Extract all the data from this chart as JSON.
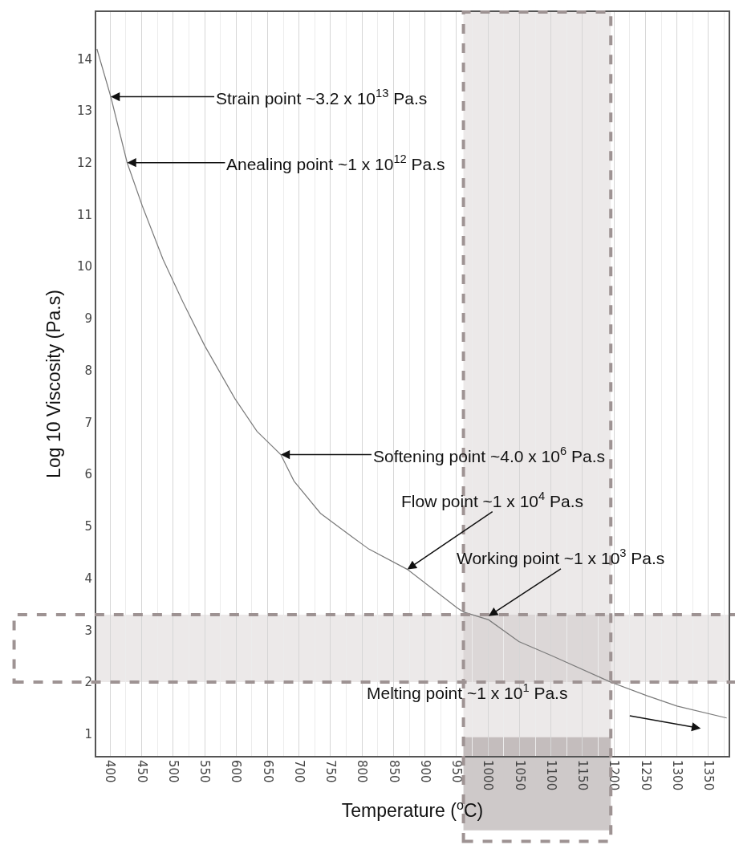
{
  "chart_data": {
    "type": "line",
    "xlabel": "Temperature ($^{o}$C)",
    "ylabel": "Log 10 Viscosity (Pa.s)",
    "x": [
      379,
      401,
      427,
      451,
      484,
      515,
      550,
      598,
      633,
      671,
      692,
      734,
      785,
      811,
      872,
      951,
      961,
      1001,
      1049,
      1103,
      1195,
      1252,
      1300,
      1379
    ],
    "series": [
      {
        "color": "#7a7a7a",
        "values": [
          14.19,
          13.27,
          12.0,
          11.17,
          10.14,
          9.33,
          8.48,
          7.46,
          6.83,
          6.38,
          5.87,
          5.25,
          4.79,
          4.56,
          4.17,
          3.43,
          3.35,
          3.2,
          2.78,
          2.5,
          2.0,
          1.74,
          1.54,
          1.31
        ]
      }
    ],
    "xlim": [
      378,
      1382
    ],
    "ylim": [
      0.58,
      14.9
    ],
    "xticks": [
      400,
      450,
      500,
      550,
      600,
      650,
      700,
      750,
      800,
      850,
      900,
      950,
      1000,
      1050,
      1100,
      1150,
      1200,
      1250,
      1300,
      1350
    ],
    "yticks": [
      1,
      2,
      3,
      4,
      5,
      6,
      7,
      8,
      9,
      10,
      11,
      12,
      13,
      14
    ],
    "grid": "x",
    "marker": "none",
    "line_style": "solid",
    "bands": [
      {
        "axis": "y",
        "from": 2,
        "to": 3.3,
        "color": "#9e9393"
      },
      {
        "axis": "x",
        "from": 961,
        "to": 1195,
        "color": "#9e9393"
      }
    ],
    "annotations": [
      {
        "text": "Strain point ~3.2 x 10$^{13}$ Pa.s",
        "x": 401,
        "y": 13.27
      },
      {
        "text": "Anealing point ~1 x 10$^{12}$ Pa.s",
        "x": 427,
        "y": 12.0
      },
      {
        "text": "Softening point ~4.0 x 10$^{6}$ Pa.s",
        "x": 671,
        "y": 6.38
      },
      {
        "text": "Flow point ~1 x 10$^{4}$ Pa.s",
        "x": 872,
        "y": 4.17
      },
      {
        "text": "Working point ~1 x 10$^{3}$ Pa.s",
        "x": 1001,
        "y": 3.27
      },
      "Melting point ~1 x 10$^{1}$ Pa.s"
    ]
  }
}
